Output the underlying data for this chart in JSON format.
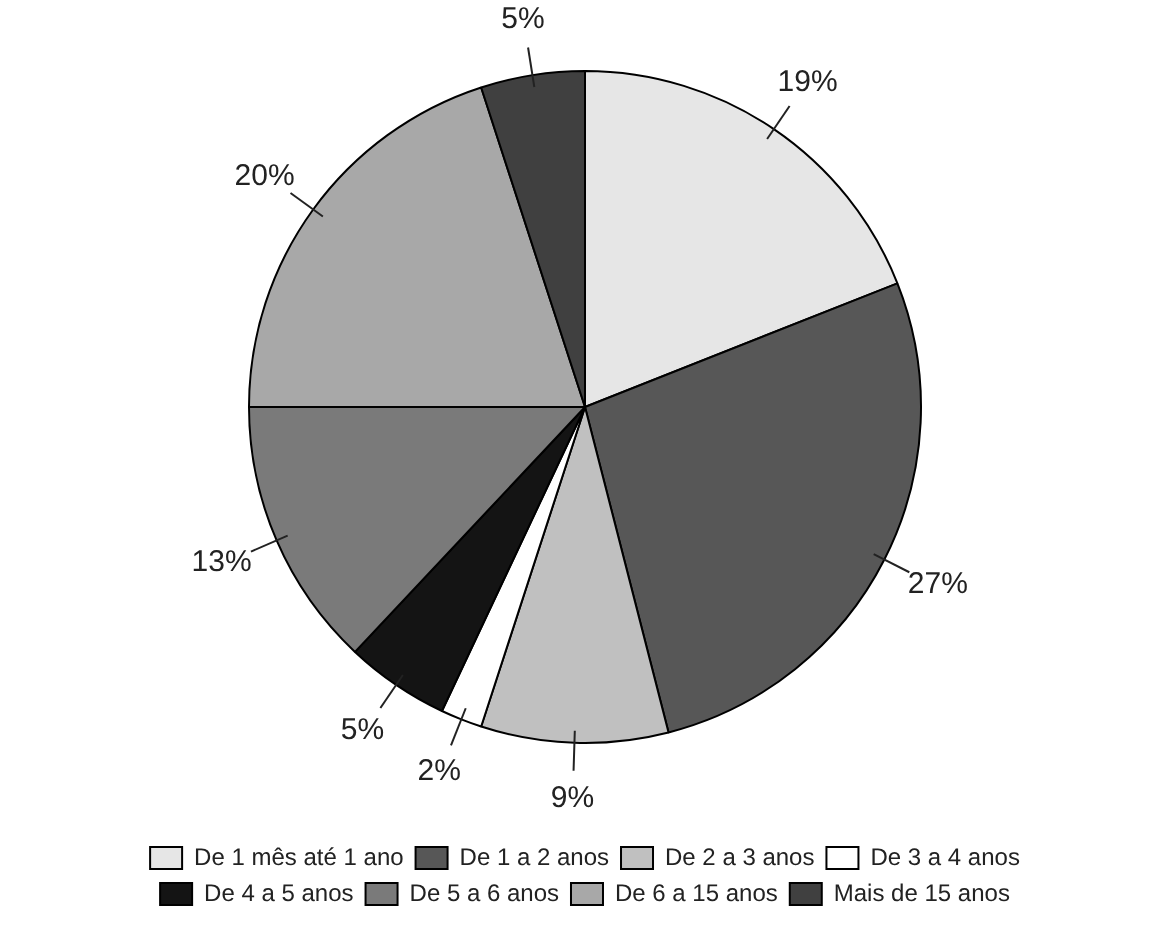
{
  "chart_data": {
    "type": "pie",
    "categories": [
      "De 1 mês até 1 ano",
      "De 1 a 2 anos",
      "De 2 a 3 anos",
      "De 3 a 4 anos",
      "De 4 a 5 anos",
      "De 5 a 6 anos",
      "De 6 a 15 anos",
      "Mais de 15 anos"
    ],
    "values": [
      19,
      27,
      9,
      2,
      5,
      13,
      20,
      5
    ],
    "value_labels": [
      "19%",
      "27%",
      "9%",
      "2%",
      "5%",
      "13%",
      "20%",
      "5%"
    ],
    "colors": [
      "#e6e6e6",
      "#575757",
      "#c0c0c0",
      "#ffffff",
      "#141414",
      "#7a7a7a",
      "#a8a8a8",
      "#404040"
    ],
    "legend": "bottom"
  }
}
